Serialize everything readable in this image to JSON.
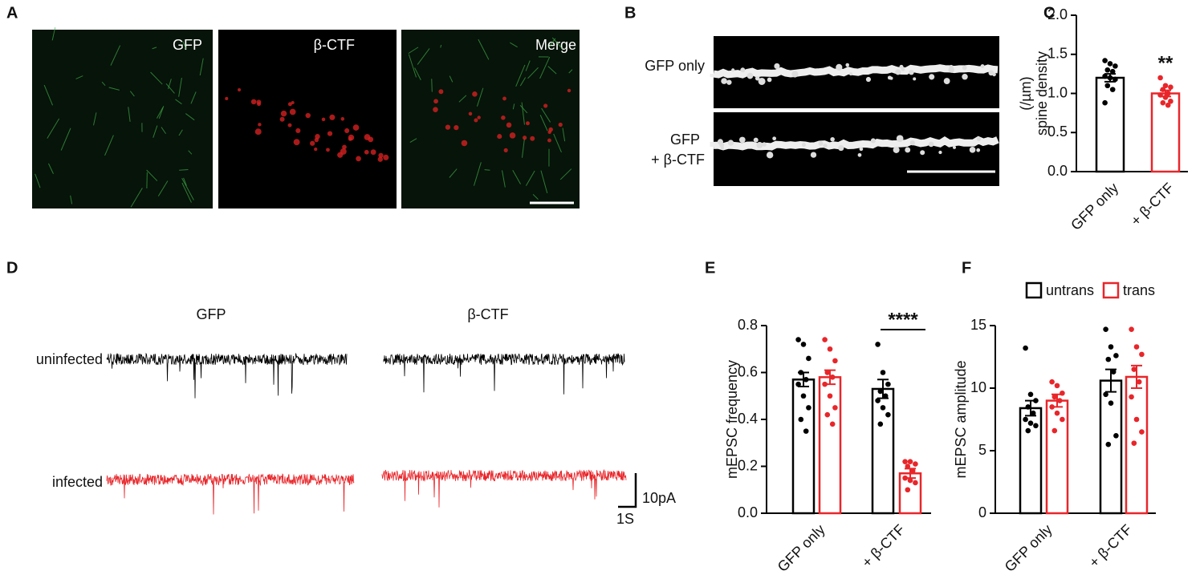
{
  "panel_labels": [
    "A",
    "B",
    "C",
    "D",
    "E",
    "F"
  ],
  "panel_a": {
    "labels": [
      "GFP",
      "β-CTF",
      "Merge"
    ]
  },
  "panel_b": {
    "labels": [
      "GFP only",
      "GFP",
      "+ β-CTF"
    ]
  },
  "panel_d": {
    "columns": [
      "GFP",
      "β-CTF"
    ],
    "rows": [
      "uninfected",
      "infected"
    ],
    "scale_y": "10pA",
    "scale_x": "1S"
  },
  "chart_data": [
    {
      "type": "bar",
      "ylabel": [
        "spine density",
        "(/µm)"
      ],
      "categories": [
        "GFP only",
        "+ β-CTF"
      ],
      "colors": [
        "#000000",
        "#e8262a"
      ],
      "values": [
        1.2,
        1.0
      ],
      "errors": [
        0.05,
        0.04
      ],
      "points": [
        [
          1.42,
          1.38,
          1.35,
          1.3,
          1.28,
          1.22,
          1.2,
          1.18,
          1.1,
          1.05,
          0.88
        ],
        [
          1.2,
          1.1,
          1.08,
          1.05,
          1.0,
          0.98,
          0.95,
          0.9,
          0.88,
          0.85
        ]
      ],
      "annotation": "**",
      "ylim": [
        0,
        2.0
      ],
      "yticks": [
        {
          "value": 0,
          "label": "0.0"
        },
        0.5,
        {
          "value": 1,
          "label": "1.0"
        },
        1.5,
        {
          "value": 2,
          "label": "2.0"
        }
      ]
    },
    {
      "type": "bar",
      "ylabel": [
        "mEPSC frequency"
      ],
      "categories": [
        "GFP only",
        "+ β-CTF"
      ],
      "series": [
        {
          "color": "#000000",
          "values": [
            0.57,
            0.53
          ],
          "errors": [
            0.03,
            0.04
          ],
          "points": [
            [
              0.74,
              0.72,
              0.66,
              0.6,
              0.57,
              0.55,
              0.5,
              0.45,
              0.4,
              0.35
            ],
            [
              0.72,
              0.6,
              0.55,
              0.52,
              0.5,
              0.48,
              0.45,
              0.42,
              0.38
            ]
          ]
        },
        {
          "color": "#e8262a",
          "values": [
            0.58,
            0.17
          ],
          "errors": [
            0.03,
            0.02
          ],
          "points": [
            [
              0.74,
              0.7,
              0.65,
              0.6,
              0.58,
              0.55,
              0.5,
              0.45,
              0.42,
              0.38
            ],
            [
              0.22,
              0.22,
              0.21,
              0.2,
              0.18,
              0.15,
              0.14,
              0.13,
              0.1
            ]
          ]
        }
      ],
      "annotation": "****",
      "ylim": [
        0,
        0.8
      ],
      "yticks": [
        {
          "value": 0,
          "label": "0.0"
        },
        0.2,
        0.4,
        0.6,
        0.8
      ]
    },
    {
      "type": "bar",
      "ylabel": [
        "mEPSC amplitude"
      ],
      "categories": [
        "GFP only",
        "+ β-CTF"
      ],
      "series": [
        {
          "name": "untrans",
          "color": "#000000",
          "values": [
            8.4,
            10.6
          ],
          "errors": [
            0.6,
            0.9
          ],
          "points": [
            [
              13.2,
              9.5,
              9,
              8.5,
              8,
              7.5,
              7.2,
              7,
              6.6
            ],
            [
              14.7,
              13.3,
              12.6,
              12.3,
              11.3,
              9.5,
              8.8,
              6.2,
              5.5
            ]
          ]
        },
        {
          "name": "trans",
          "color": "#e8262a",
          "values": [
            9.0,
            10.9
          ],
          "errors": [
            0.5,
            0.9
          ],
          "points": [
            [
              10.5,
              10.2,
              9.6,
              9.3,
              9,
              8.5,
              8,
              7.5,
              6.6
            ],
            [
              14.7,
              13.3,
              12.7,
              11.5,
              10.5,
              9.3,
              7.5,
              6.5,
              5.6
            ]
          ]
        }
      ],
      "legend": "top",
      "ylim": [
        0,
        15
      ],
      "yticks": [
        0,
        5,
        10,
        15
      ]
    }
  ]
}
